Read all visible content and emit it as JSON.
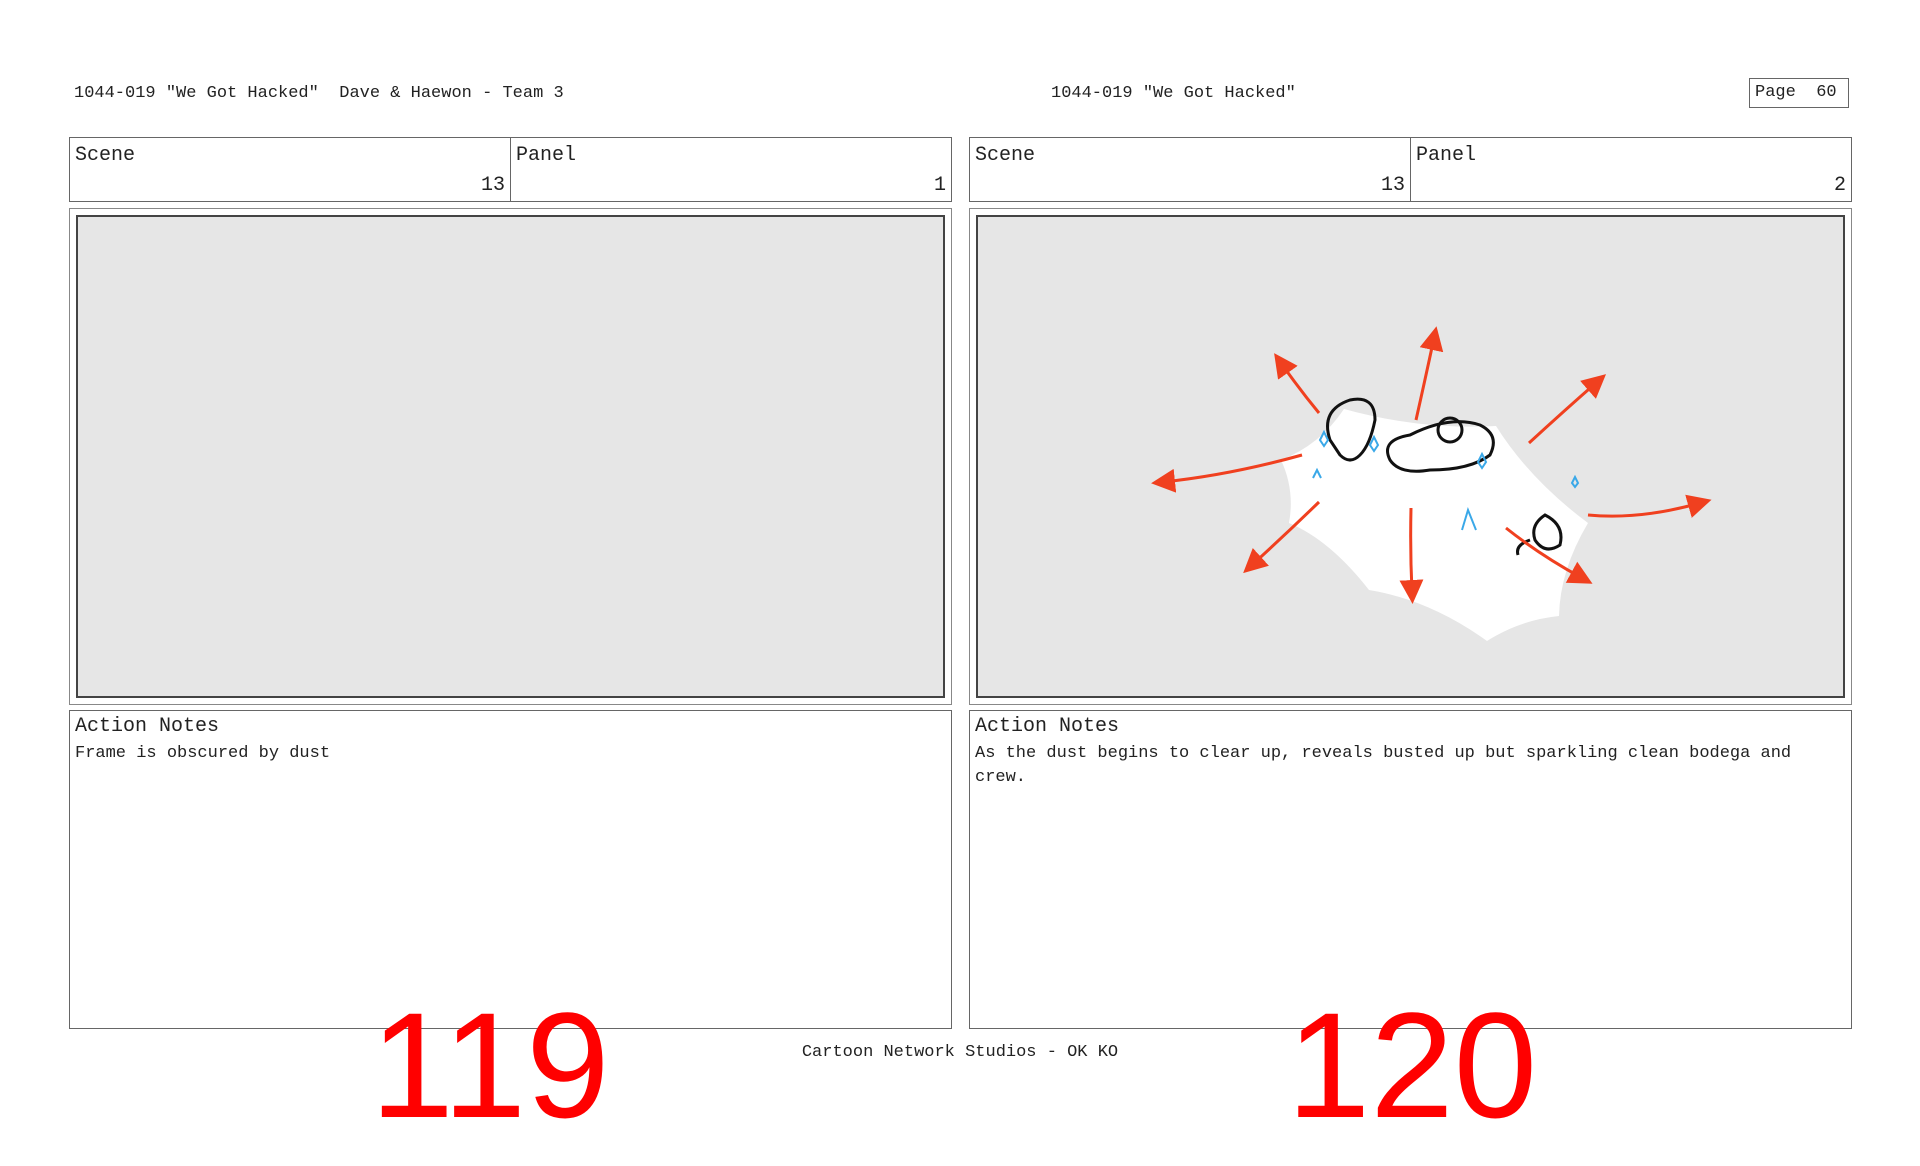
{
  "header": {
    "left": "1044-019 \"We Got Hacked\"  Dave & Haewon - Team 3",
    "center": "1044-019 \"We Got Hacked\"",
    "page_label": "Page",
    "page_number": "60"
  },
  "panels": [
    {
      "scene_label": "Scene",
      "scene": "13",
      "panel_label": "Panel",
      "panel": "1",
      "notes_label": "Action Notes",
      "notes": "Frame is obscured by dust",
      "number": "119"
    },
    {
      "scene_label": "Scene",
      "scene": "13",
      "panel_label": "Panel",
      "panel": "2",
      "notes_label": "Action Notes",
      "notes": "As the dust begins to clear up, reveals busted up but sparkling clean bodega and crew.",
      "number": "120"
    }
  ],
  "footer": "Cartoon Network Studios - OK KO",
  "colors": {
    "arrow": "#f0401f",
    "panel_bg": "#e6e6e6",
    "sparkle": "#3aa8e8",
    "number": "#ff0000"
  }
}
